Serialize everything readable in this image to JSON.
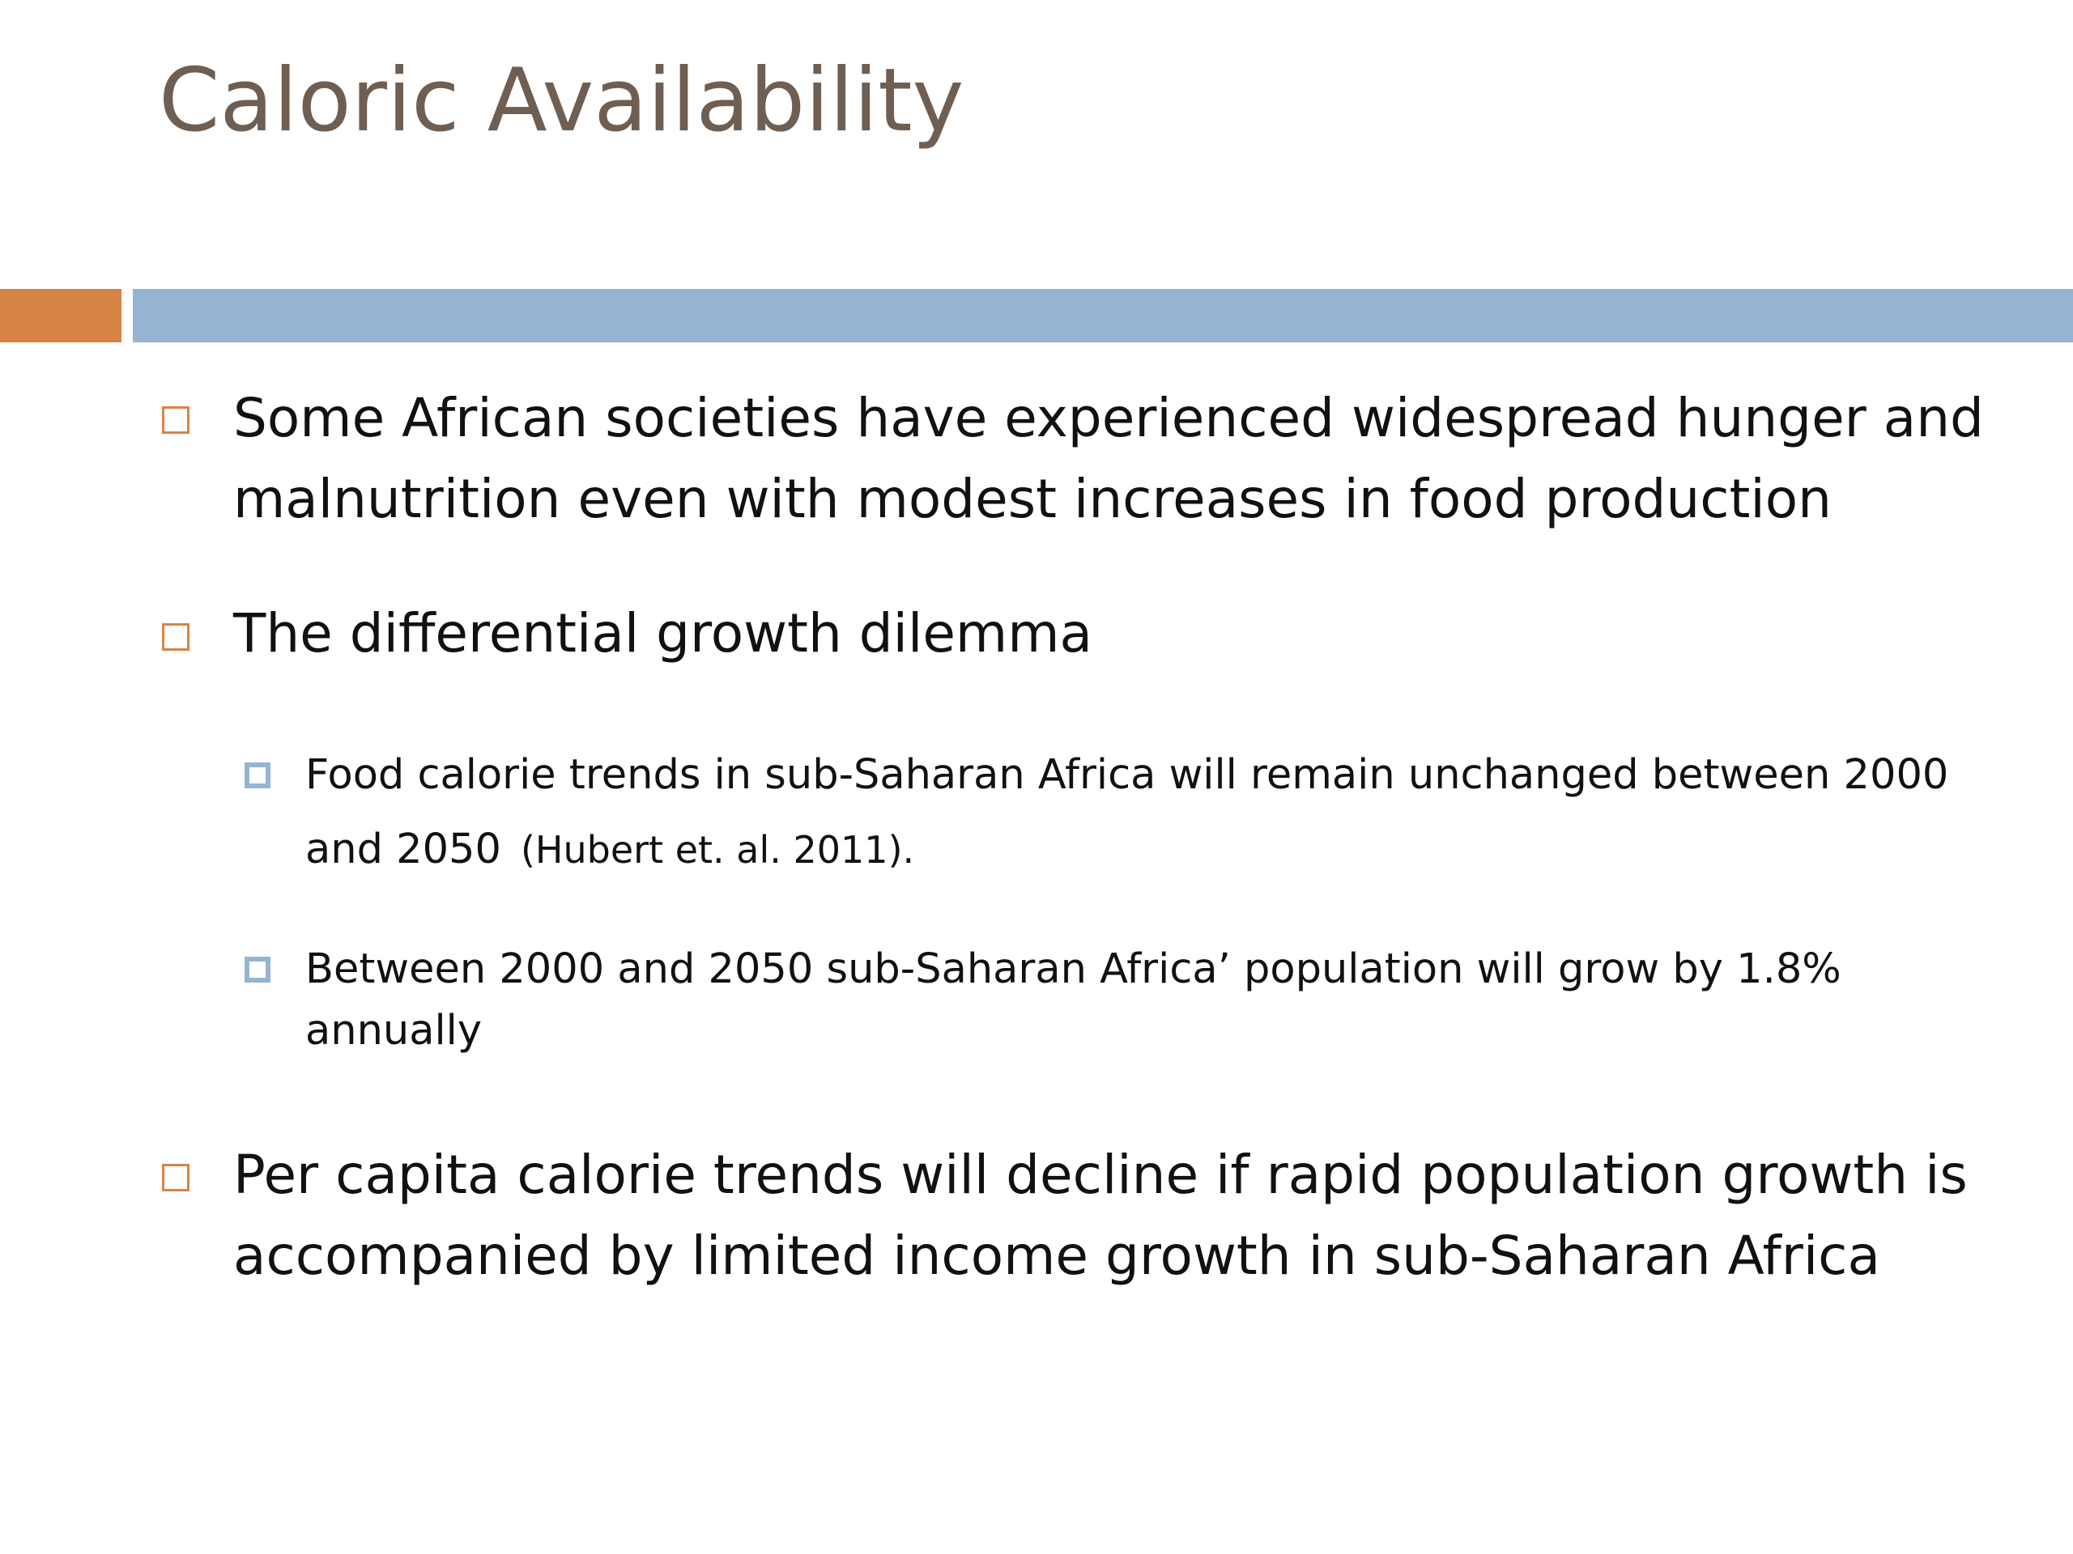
{
  "slide": {
    "title": "Caloric Availability",
    "bullets": [
      {
        "text": "Some African societies have experienced widespread hunger and malnutrition even with modest increases in food production"
      },
      {
        "text": "The differential growth dilemma",
        "sub_bullets": [
          {
            "text": "Food calorie trends in sub-Saharan Africa will remain unchanged between 2000 and 2050",
            "citation": "(Hubert et. al. 2011)."
          },
          {
            "text": "Between 2000 and 2050 sub-Saharan Africa’ population will grow by 1.8% annually"
          }
        ]
      },
      {
        "text": "Per capita calorie trends will decline if rapid population growth is accompanied by limited income growth in sub-Saharan Africa"
      }
    ]
  },
  "theme": {
    "title_color": "#6f5e52",
    "accent_bar_color": "#d88446",
    "main_bar_color": "#95b4d3",
    "bullet_l1_color": "#d88446",
    "bullet_l2_color": "#95b4d3",
    "text_color": "#111111"
  },
  "icons": {
    "level1_bullet": "hollow-square-icon",
    "level2_bullet": "filled-square-icon"
  }
}
